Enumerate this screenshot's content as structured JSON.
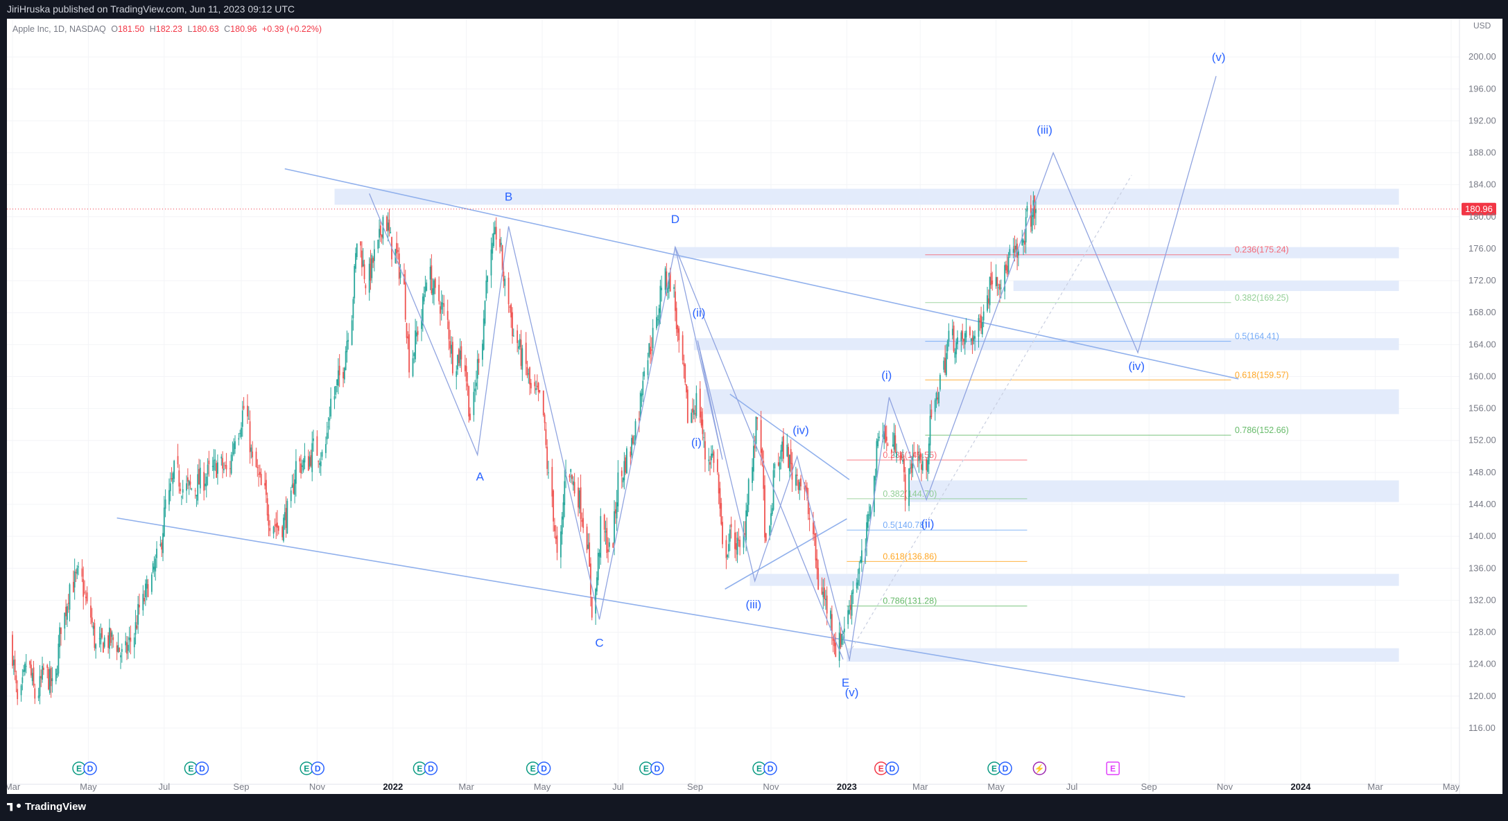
{
  "header": {
    "published_text": "JiriHruska published on TradingView.com, Jun 11, 2023 09:12 UTC"
  },
  "footer": {
    "brand": "TradingView"
  },
  "legend": {
    "symbol": "Apple Inc, 1D, NASDAQ",
    "o_label": "O",
    "o_value": "181.50",
    "h_label": "H",
    "h_value": "182.23",
    "l_label": "L",
    "l_value": "180.63",
    "c_label": "C",
    "c_value": "180.96",
    "change": "+0.39 (+0.22%)"
  },
  "colors": {
    "up": "#26a69a",
    "down": "#ef5350",
    "wave_line": "#90a4e0",
    "channel": "#90b0ec",
    "zone": "#e3ebfb",
    "label": "#2962ff",
    "price_tag": "#f23645"
  },
  "chart_data": {
    "type": "candlestick",
    "symbol": "AAPL",
    "interval": "1D",
    "currency": "USD",
    "ylim": [
      114,
      204
    ],
    "y_ticks": [
      116,
      120,
      124,
      128,
      132,
      136,
      140,
      144,
      148,
      152,
      156,
      160,
      164,
      168,
      172,
      176,
      180,
      184,
      188,
      192,
      196,
      200
    ],
    "y_tick_labels": [
      "116.00",
      "120.00",
      "124.00",
      "128.00",
      "132.00",
      "136.00",
      "140.00",
      "144.00",
      "148.00",
      "152.00",
      "156.00",
      "160.00",
      "164.00",
      "168.00",
      "172.00",
      "176.00",
      "180.00",
      "184.00",
      "188.00",
      "192.00",
      "196.00",
      "200.00"
    ],
    "x_ticks": [
      {
        "label": "Mar",
        "date": "2021-03-01"
      },
      {
        "label": "May",
        "date": "2021-05-01"
      },
      {
        "label": "Jul",
        "date": "2021-07-01"
      },
      {
        "label": "Sep",
        "date": "2021-09-01"
      },
      {
        "label": "Nov",
        "date": "2021-11-01"
      },
      {
        "label": "2022",
        "date": "2022-01-01",
        "bold": true
      },
      {
        "label": "Mar",
        "date": "2022-03-01"
      },
      {
        "label": "May",
        "date": "2022-05-01"
      },
      {
        "label": "Jul",
        "date": "2022-07-01"
      },
      {
        "label": "Sep",
        "date": "2022-09-01"
      },
      {
        "label": "Nov",
        "date": "2022-11-01"
      },
      {
        "label": "2023",
        "date": "2023-01-01",
        "bold": true
      },
      {
        "label": "Mar",
        "date": "2023-03-01"
      },
      {
        "label": "May",
        "date": "2023-05-01"
      },
      {
        "label": "Jul",
        "date": "2023-07-01"
      },
      {
        "label": "Sep",
        "date": "2023-09-01"
      },
      {
        "label": "Nov",
        "date": "2023-11-01"
      },
      {
        "label": "2024",
        "date": "2024-01-01",
        "bold": true
      },
      {
        "label": "Mar",
        "date": "2024-03-01"
      },
      {
        "label": "May",
        "date": "2024-05-01"
      }
    ],
    "last_price": 180.96,
    "last_price_label": "180.96",
    "price_path": [
      [
        "2021-03-01",
        127
      ],
      [
        "2021-03-08",
        119
      ],
      [
        "2021-03-15",
        124
      ],
      [
        "2021-03-22",
        120
      ],
      [
        "2021-03-29",
        123
      ],
      [
        "2021-04-05",
        121
      ],
      [
        "2021-04-12",
        129
      ],
      [
        "2021-04-19",
        134
      ],
      [
        "2021-04-26",
        135
      ],
      [
        "2021-05-03",
        131
      ],
      [
        "2021-05-10",
        126
      ],
      [
        "2021-05-17",
        127
      ],
      [
        "2021-05-24",
        127
      ],
      [
        "2021-05-31",
        125
      ],
      [
        "2021-06-07",
        127
      ],
      [
        "2021-06-14",
        131
      ],
      [
        "2021-06-21",
        134
      ],
      [
        "2021-06-28",
        137
      ],
      [
        "2021-07-05",
        144
      ],
      [
        "2021-07-12",
        148
      ],
      [
        "2021-07-19",
        146
      ],
      [
        "2021-07-26",
        146
      ],
      [
        "2021-08-02",
        147
      ],
      [
        "2021-08-09",
        148
      ],
      [
        "2021-08-16",
        149
      ],
      [
        "2021-08-23",
        148
      ],
      [
        "2021-08-30",
        153
      ],
      [
        "2021-09-06",
        156
      ],
      [
        "2021-09-13",
        149
      ],
      [
        "2021-09-20",
        146
      ],
      [
        "2021-09-27",
        142
      ],
      [
        "2021-10-04",
        141
      ],
      [
        "2021-10-11",
        143
      ],
      [
        "2021-10-18",
        149
      ],
      [
        "2021-10-25",
        149
      ],
      [
        "2021-11-01",
        151
      ],
      [
        "2021-11-08",
        150
      ],
      [
        "2021-11-15",
        157
      ],
      [
        "2021-11-22",
        160
      ],
      [
        "2021-11-29",
        166
      ],
      [
        "2021-12-06",
        177
      ],
      [
        "2021-12-13",
        172
      ],
      [
        "2021-12-20",
        175
      ],
      [
        "2021-12-27",
        180
      ],
      [
        "2022-01-03",
        176
      ],
      [
        "2022-01-10",
        173
      ],
      [
        "2022-01-17",
        162
      ],
      [
        "2022-01-24",
        166
      ],
      [
        "2022-01-31",
        173
      ],
      [
        "2022-02-07",
        170
      ],
      [
        "2022-02-14",
        168
      ],
      [
        "2022-02-21",
        162
      ],
      [
        "2022-02-28",
        163
      ],
      [
        "2022-03-07",
        155
      ],
      [
        "2022-03-14",
        163
      ],
      [
        "2022-03-21",
        174
      ],
      [
        "2022-03-28",
        178
      ],
      [
        "2022-04-04",
        171
      ],
      [
        "2022-04-11",
        165
      ],
      [
        "2022-04-18",
        162
      ],
      [
        "2022-04-25",
        158
      ],
      [
        "2022-05-02",
        157
      ],
      [
        "2022-05-09",
        147
      ],
      [
        "2022-05-16",
        137
      ],
      [
        "2022-05-23",
        149
      ],
      [
        "2022-05-30",
        146
      ],
      [
        "2022-06-06",
        142
      ],
      [
        "2022-06-13",
        131
      ],
      [
        "2022-06-20",
        141
      ],
      [
        "2022-06-27",
        138
      ],
      [
        "2022-07-04",
        147
      ],
      [
        "2022-07-11",
        150
      ],
      [
        "2022-07-18",
        154
      ],
      [
        "2022-07-25",
        162
      ],
      [
        "2022-08-01",
        165
      ],
      [
        "2022-08-08",
        172
      ],
      [
        "2022-08-15",
        172
      ],
      [
        "2022-08-22",
        163
      ],
      [
        "2022-08-29",
        155
      ],
      [
        "2022-09-05",
        157
      ],
      [
        "2022-09-12",
        150
      ],
      [
        "2022-09-19",
        150
      ],
      [
        "2022-09-26",
        138
      ],
      [
        "2022-10-03",
        140
      ],
      [
        "2022-10-10",
        138
      ],
      [
        "2022-10-17",
        147
      ],
      [
        "2022-10-24",
        155
      ],
      [
        "2022-10-31",
        138
      ],
      [
        "2022-11-07",
        149
      ],
      [
        "2022-11-14",
        151
      ],
      [
        "2022-11-21",
        148
      ],
      [
        "2022-11-28",
        147
      ],
      [
        "2022-12-05",
        142
      ],
      [
        "2022-12-12",
        134
      ],
      [
        "2022-12-19",
        131
      ],
      [
        "2022-12-26",
        126
      ],
      [
        "2023-01-02",
        129
      ],
      [
        "2023-01-09",
        134
      ],
      [
        "2023-01-16",
        137
      ],
      [
        "2023-01-23",
        145
      ],
      [
        "2023-01-30",
        154
      ],
      [
        "2023-02-06",
        151
      ],
      [
        "2023-02-13",
        152
      ],
      [
        "2023-02-20",
        146
      ],
      [
        "2023-02-27",
        151
      ],
      [
        "2023-03-06",
        148
      ],
      [
        "2023-03-13",
        155
      ],
      [
        "2023-03-20",
        160
      ],
      [
        "2023-03-27",
        165
      ],
      [
        "2023-04-03",
        164
      ],
      [
        "2023-04-10",
        165
      ],
      [
        "2023-04-17",
        165
      ],
      [
        "2023-04-24",
        169
      ],
      [
        "2023-05-01",
        173
      ],
      [
        "2023-05-08",
        172
      ],
      [
        "2023-05-15",
        175
      ],
      [
        "2023-05-22",
        175
      ],
      [
        "2023-05-29",
        180
      ],
      [
        "2023-06-05",
        180.96
      ]
    ],
    "zones": [
      {
        "from_date": "2021-11-15",
        "to_date": "2024-03-20",
        "low": 181.5,
        "high": 183.5
      },
      {
        "from_date": "2022-08-15",
        "to_date": "2024-03-20",
        "low": 174.8,
        "high": 176.2
      },
      {
        "from_date": "2023-05-15",
        "to_date": "2024-03-20",
        "low": 170.7,
        "high": 172.0
      },
      {
        "from_date": "2022-08-31",
        "to_date": "2024-03-20",
        "low": 163.3,
        "high": 164.8
      },
      {
        "from_date": "2022-09-08",
        "to_date": "2024-03-20",
        "low": 155.3,
        "high": 158.4
      },
      {
        "from_date": "2023-02-20",
        "to_date": "2024-03-20",
        "low": 144.3,
        "high": 147.0
      },
      {
        "from_date": "2022-10-15",
        "to_date": "2024-03-20",
        "low": 133.8,
        "high": 135.3
      },
      {
        "from_date": "2023-01-01",
        "to_date": "2024-03-20",
        "low": 124.3,
        "high": 126.0
      }
    ],
    "channel_lines": [
      {
        "p1": [
          "2021-10-06",
          186.0
        ],
        "p2": [
          "2023-11-12",
          159.7
        ]
      },
      {
        "p1": [
          "2021-05-24",
          142.3
        ],
        "p2": [
          "2023-09-30",
          119.9
        ]
      },
      {
        "p1": [
          "2022-09-29",
          157.8
        ],
        "p2": [
          "2023-01-03",
          147.1
        ]
      },
      {
        "p1": [
          "2022-09-25",
          133.4
        ],
        "p2": [
          "2023-01-01",
          142.2
        ]
      },
      {
        "p1": [
          "2023-01-03",
          125.4
        ],
        "p2": [
          "2023-08-18",
          185.2
        ],
        "dashed": true
      }
    ],
    "waves": [
      {
        "name": "primary",
        "points": [
          [
            "2021-12-13",
            182.9
          ],
          [
            "2022-03-10",
            150.2
          ],
          [
            "2022-04-04",
            178.8
          ],
          [
            "2022-06-16",
            129.6
          ],
          [
            "2022-08-16",
            176.2
          ],
          [
            "2022-12-29",
            124.6
          ]
        ]
      },
      {
        "name": "impulse-c",
        "points": [
          [
            "2022-08-16",
            176.2
          ],
          [
            "2022-09-23",
            149.6
          ],
          [
            "2022-09-03",
            164.5
          ],
          [
            "2022-10-19",
            134.4
          ],
          [
            "2022-11-22",
            150.0
          ],
          [
            "2023-01-03",
            124.6
          ]
        ]
      },
      {
        "name": "impulse-up",
        "points": [
          [
            "2023-01-03",
            124.4
          ],
          [
            "2023-02-04",
            157.4
          ],
          [
            "2023-03-06",
            144.6
          ],
          [
            "2023-06-16",
            188.0
          ],
          [
            "2023-08-23",
            163.0
          ],
          [
            "2023-10-25",
            197.6
          ]
        ]
      }
    ],
    "wave_labels": [
      {
        "text": "B",
        "date": "2022-04-04",
        "price": 182.0
      },
      {
        "text": "A",
        "date": "2022-03-12",
        "price": 147.0
      },
      {
        "text": "D",
        "date": "2022-08-16",
        "price": 179.2
      },
      {
        "text": "C",
        "date": "2022-06-16",
        "price": 126.2
      },
      {
        "text": "E",
        "date": "2022-12-31",
        "price": 121.2
      },
      {
        "text": "(ii)",
        "date": "2022-09-04",
        "price": 167.5
      },
      {
        "text": "(i)",
        "date": "2022-09-02",
        "price": 151.3
      },
      {
        "text": "(iii)",
        "date": "2022-10-18",
        "price": 131.0
      },
      {
        "text": "(iv)",
        "date": "2022-11-25",
        "price": 152.8
      },
      {
        "text": "(v)",
        "date": "2023-01-05",
        "price": 120.0
      },
      {
        "text": "(i)",
        "date": "2023-02-02",
        "price": 159.7
      },
      {
        "text": "(ii)",
        "date": "2023-03-07",
        "price": 141.1
      },
      {
        "text": "(iii)",
        "date": "2023-06-09",
        "price": 190.4
      },
      {
        "text": "(iv)",
        "date": "2023-08-22",
        "price": 160.8
      },
      {
        "text": "(v)",
        "date": "2023-10-27",
        "price": 199.5
      }
    ],
    "fib_sets": [
      {
        "from_date": "2023-03-05",
        "to_date": "2023-11-06",
        "label_date": "2023-11-09",
        "levels": [
          {
            "ratio": "0.236",
            "price": 175.24,
            "label": "0.236(175.24)",
            "color": "#f7525f"
          },
          {
            "ratio": "0.382",
            "price": 169.25,
            "label": "0.382(169.25)",
            "color": "#81c784"
          },
          {
            "ratio": "0.5",
            "price": 164.41,
            "label": "0.5(164.41)",
            "color": "#5b9cf6"
          },
          {
            "ratio": "0.618",
            "price": 159.57,
            "label": "0.618(159.57)",
            "color": "#ff9800"
          },
          {
            "ratio": "0.786",
            "price": 152.66,
            "label": "0.786(152.66)",
            "color": "#4caf50"
          }
        ]
      },
      {
        "from_date": "2023-01-01",
        "to_date": "2023-05-26",
        "label_date": "2023-01-30",
        "levels": [
          {
            "ratio": "0.236",
            "price": 149.55,
            "label": "0.236(149.55)",
            "color": "#f7525f"
          },
          {
            "ratio": "0.382",
            "price": 144.7,
            "label": "0.382(144.70)",
            "color": "#81c784"
          },
          {
            "ratio": "0.5",
            "price": 140.78,
            "label": "0.5(140.78)",
            "color": "#5b9cf6"
          },
          {
            "ratio": "0.618",
            "price": 136.86,
            "label": "0.618(136.86)",
            "color": "#ff9800"
          },
          {
            "ratio": "0.786",
            "price": 131.28,
            "label": "0.786(131.28)",
            "color": "#4caf50"
          }
        ]
      }
    ],
    "event_markers": [
      {
        "date": "2021-04-28",
        "glyphs": "ED",
        "color": "#089981"
      },
      {
        "date": "2021-07-27",
        "glyphs": "ED",
        "color": "#089981"
      },
      {
        "date": "2021-10-28",
        "glyphs": "ED",
        "color": "#089981"
      },
      {
        "date": "2022-01-27",
        "glyphs": "ED",
        "color": "#089981"
      },
      {
        "date": "2022-04-28",
        "glyphs": "ED",
        "color": "#089981"
      },
      {
        "date": "2022-07-28",
        "glyphs": "ED",
        "color": "#089981"
      },
      {
        "date": "2022-10-27",
        "glyphs": "ED",
        "color": "#089981"
      },
      {
        "date": "2023-02-02",
        "glyphs": "ED",
        "color": "#f23645"
      },
      {
        "date": "2023-05-04",
        "glyphs": "ED",
        "color": "#089981"
      },
      {
        "date": "2023-06-05",
        "glyphs": "⚡",
        "color": "#9c27b0"
      },
      {
        "date": "2023-08-03",
        "glyphs": "E",
        "color": "#e040fb"
      }
    ]
  }
}
